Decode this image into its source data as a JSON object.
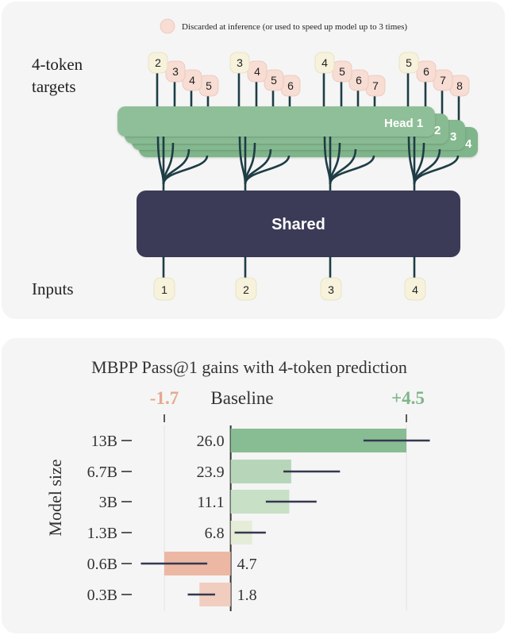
{
  "diagram": {
    "legend_text": "Discarded at inference (or used to speed up model up to 3 times)",
    "targets_label_line1": "4-token",
    "targets_label_line2": "targets",
    "inputs_label": "Inputs",
    "shared_label": "Shared",
    "head_label": "Head 1",
    "head_numbers": [
      "2",
      "3",
      "4"
    ],
    "inputs": [
      "1",
      "2",
      "3",
      "4"
    ],
    "targets": [
      [
        "2",
        "3",
        "4",
        "5"
      ],
      [
        "3",
        "4",
        "5",
        "6"
      ],
      [
        "4",
        "5",
        "6",
        "7"
      ],
      [
        "5",
        "6",
        "7",
        "8"
      ]
    ],
    "colors": {
      "head": "#8fbf98",
      "head_dark": "#7fb58a",
      "shared": "#3b3b58",
      "line": "#1e3d45",
      "token_primary": "#f6f2dc",
      "token_discarded": "#f7ddd3"
    }
  },
  "chart_data": {
    "type": "bar",
    "orientation": "horizontal",
    "title": "MBPP Pass@1  gains with 4-token prediction",
    "ylabel": "Model size",
    "baseline_label": "Baseline",
    "min_label": "-1.7",
    "max_label": "+4.5",
    "xlim": [
      -1.7,
      4.5
    ],
    "categories": [
      "13B",
      "6.7B",
      "3B",
      "1.3B",
      "0.6B",
      "0.3B"
    ],
    "baseline_values": [
      "26.0",
      "23.9",
      "11.1",
      "6.8",
      "4.7",
      "1.8"
    ],
    "gains": [
      4.5,
      1.55,
      1.5,
      0.55,
      -1.7,
      -0.8
    ],
    "error_low": [
      3.4,
      1.35,
      0.9,
      0.1,
      -2.3,
      -1.1
    ],
    "error_high": [
      5.1,
      2.8,
      2.2,
      0.9,
      -0.6,
      -0.4
    ],
    "colors": {
      "pos": [
        "#88bd94",
        "#b7d6b9",
        "#c8e0c5",
        "#e5ecd8"
      ],
      "neg": [
        "#ecb8a4",
        "#f1cdbf"
      ],
      "error": "#34384f",
      "min_label": "#e6a88f",
      "max_label": "#7fb58a"
    }
  }
}
